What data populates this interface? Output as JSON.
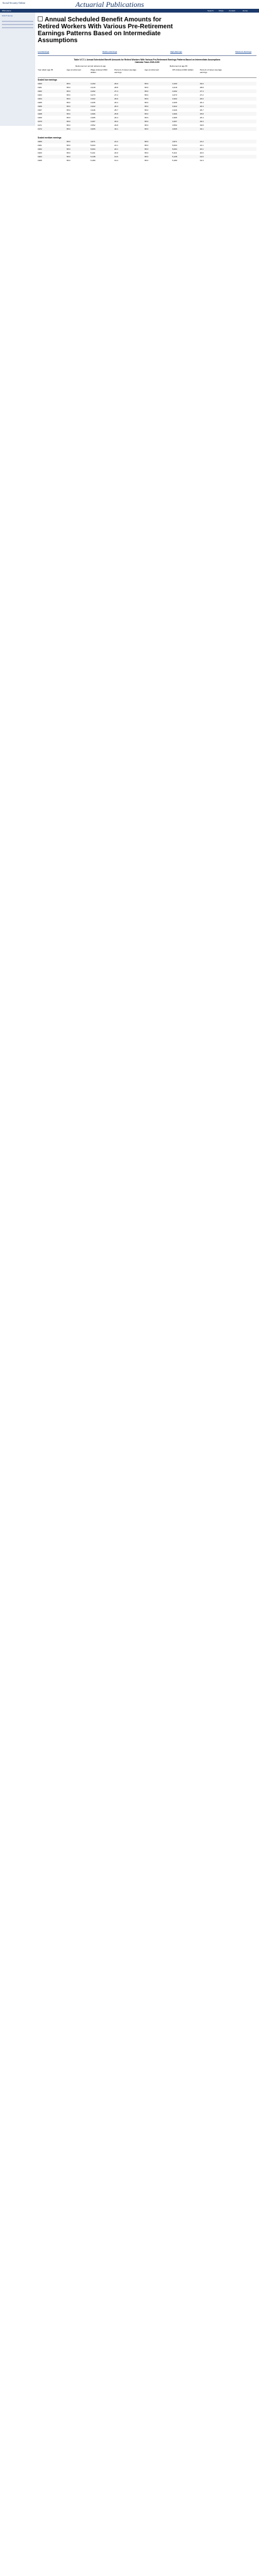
{
  "header": {
    "agency": "Social Security Online",
    "publication": "Actuarial Publications",
    "home_link": "SSA Home",
    "nav": [
      "Search",
      "FAQs",
      "Contact",
      "Home"
    ]
  },
  "sidebar": {
    "item": "OACT Home"
  },
  "doc": {
    "title": "Annual Scheduled Benefit Amounts for Retired Workers With Various Pre-Retirement Earnings Patterns Based on Intermediate Assumptions"
  },
  "see_also": [
    "Low Earnings",
    "Medium Earnings",
    "High Earnings",
    "Maximum Earnings"
  ],
  "table": {
    "caption": "Table V.C7.1. Annual Scheduled Benefit Amounts for Retired Workers With Various Pre-Retirement Earnings Patterns Based on Intermediate Assumptions",
    "caption_sub": "Calendar Years 2020-2100",
    "group_left": "Retirement at normal retirement age",
    "group_right": "Retirement at age 65",
    "col_year": "Year attain age 65",
    "col_age": "Age at retirement",
    "col_wage": "Wage-indexed 2022 dollars",
    "col_cpi": "CPI-indexed 2022 dollars",
    "col_pct": "Percent of career-average earnings",
    "section_low": "Scaled low earnings",
    "section_medium": "Scaled medium earnings"
  },
  "rows_low": [
    [
      "1960",
      "65:0",
      "3,160",
      "29.0",
      "65:0",
      "3,160",
      "29.0"
    ],
    [
      "1961",
      "65:0",
      "3,218",
      "28.8",
      "65:0",
      "3,218",
      "28.8"
    ],
    [
      "1962",
      "65:0",
      "3,292",
      "27.4",
      "65:0",
      "3,292",
      "27.4"
    ],
    [
      "1963",
      "65:0",
      "3,273",
      "27.2",
      "65:0",
      "3,273",
      "27.2"
    ],
    [
      "1964",
      "65:0",
      "3,302",
      "26.6",
      "65:0",
      "3,302",
      "26.6"
    ],
    [
      "1965",
      "65:0",
      "3,335",
      "26.4",
      "65:0",
      "3,335",
      "26.4"
    ],
    [
      "1966",
      "65:0",
      "3,322",
      "26.3",
      "65:0",
      "3,322",
      "26.3"
    ],
    [
      "1967",
      "65:0",
      "3,346",
      "25.7",
      "65:0",
      "3,346",
      "25.7"
    ],
    [
      "1968",
      "65:0",
      "3,366",
      "25.8",
      "65:0",
      "3,366",
      "25.8"
    ],
    [
      "1969",
      "65:0",
      "3,395",
      "26.4",
      "65:0",
      "3,395",
      "26.4"
    ],
    [
      "1970",
      "65:0",
      "3,467",
      "29.3",
      "65:0",
      "3,467",
      "29.3"
    ],
    [
      "1971",
      "65:0",
      "3,552",
      "29.8",
      "65:0",
      "3,552",
      "29.8"
    ],
    [
      "1972",
      "65:0",
      "3,665",
      "33.1",
      "65:0",
      "3,665",
      "33.1"
    ]
  ],
  "rows_medium": [
    [
      "1960",
      "65:0",
      "4,971",
      "21.2",
      "65:0",
      "4,971",
      "21.2"
    ],
    [
      "1961",
      "65:0",
      "5,003",
      "21.1",
      "65:0",
      "5,003",
      "21.1"
    ],
    [
      "1962",
      "65:0",
      "5,094",
      "20.1",
      "65:0",
      "5,094",
      "20.1"
    ],
    [
      "1963",
      "65:0",
      "5,113",
      "20.0",
      "65:0",
      "5,113",
      "20.0"
    ],
    [
      "1964",
      "65:0",
      "5,138",
      "19.6",
      "65:0",
      "5,138",
      "19.6"
    ],
    [
      "1965",
      "65:0",
      "5,180",
      "19.4",
      "65:0",
      "5,180",
      "19.4"
    ]
  ]
}
